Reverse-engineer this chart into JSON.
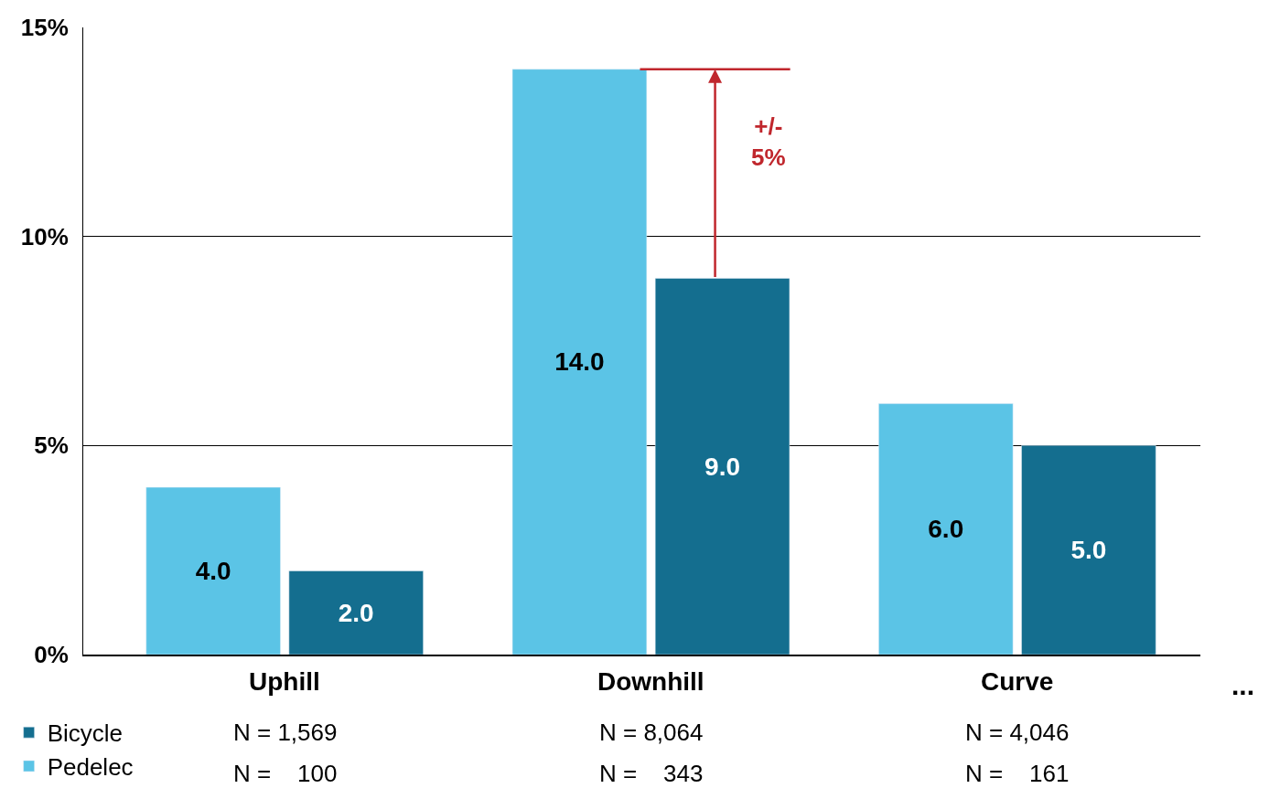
{
  "chart_data": {
    "type": "bar",
    "categories": [
      "Uphill",
      "Downhill",
      "Curve"
    ],
    "series": [
      {
        "name": "Pedelec",
        "color": "#5bc4e6",
        "values": [
          4.0,
          14.0,
          6.0
        ],
        "value_labels": [
          "4.0",
          "14.0",
          "6.0"
        ]
      },
      {
        "name": "Bicycle",
        "color": "#146e8f",
        "values": [
          2.0,
          9.0,
          5.0
        ],
        "value_labels": [
          "2.0",
          "9.0",
          "5.0"
        ]
      }
    ],
    "ylim": [
      0,
      15
    ],
    "yticks": [
      {
        "value": 0,
        "label": "0%"
      },
      {
        "value": 5,
        "label": "5%"
      },
      {
        "value": 10,
        "label": "10%"
      },
      {
        "value": 15,
        "label": "15%"
      }
    ],
    "grid": "y",
    "legend": "bottom left",
    "ref_lines": [
      {
        "axis": "y",
        "value": 14.0,
        "color": "#c0272d"
      }
    ],
    "annotations": [
      "N = 1,569",
      "N = 8,064",
      "N = 4,046",
      "N =    100",
      "N =    343",
      "N =    161",
      "...",
      "+/-\n5%"
    ]
  }
}
